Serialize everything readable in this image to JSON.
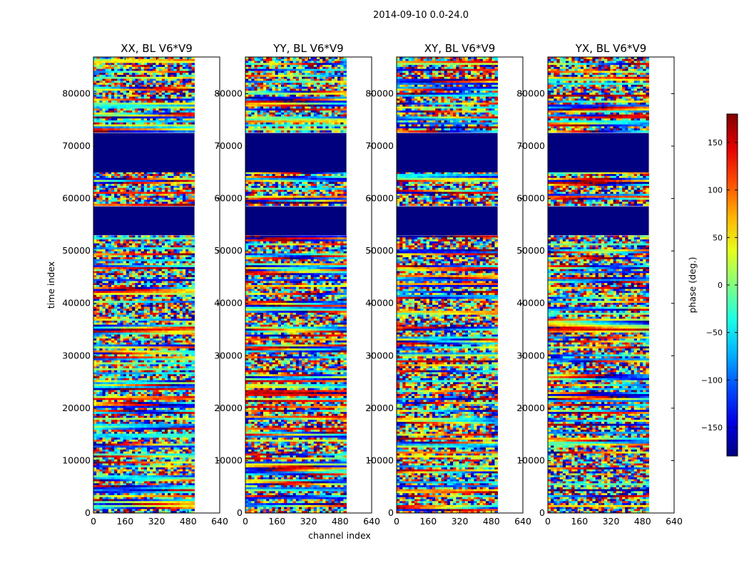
{
  "figure_title": "2014-09-10 0.0-24.0",
  "chart_data": {
    "type": "heatmap",
    "title": "2014-09-10 0.0-24.0",
    "xlabel": "channel index",
    "ylabel": "time index",
    "xlim": [
      0,
      640
    ],
    "ylim": [
      0,
      87000
    ],
    "xticks": [
      0,
      160,
      320,
      480,
      640
    ],
    "yticks": [
      0,
      10000,
      20000,
      30000,
      40000,
      50000,
      60000,
      70000,
      80000
    ],
    "data_extent_channels": [
      0,
      512
    ],
    "panels": [
      {
        "name": "XX",
        "title": "XX, BL V6*V9"
      },
      {
        "name": "YY",
        "title": "YY, BL V6*V9"
      },
      {
        "name": "XY",
        "title": "XY, BL V6*V9"
      },
      {
        "name": "YX",
        "title": "YX, BL V6*V9"
      }
    ],
    "flagged_time_ranges": [
      [
        53000,
        58500
      ],
      [
        65000,
        72500
      ]
    ],
    "colorbar": {
      "label": "phase (deg.)",
      "range": [
        -180,
        180
      ],
      "ticks": [
        -150,
        -100,
        -50,
        0,
        50,
        100,
        150
      ],
      "tick_labels": [
        "−150",
        "−100",
        "−50",
        "0",
        "50",
        "100",
        "150"
      ],
      "colormap": "jet",
      "flag_color": "#00007f"
    }
  }
}
